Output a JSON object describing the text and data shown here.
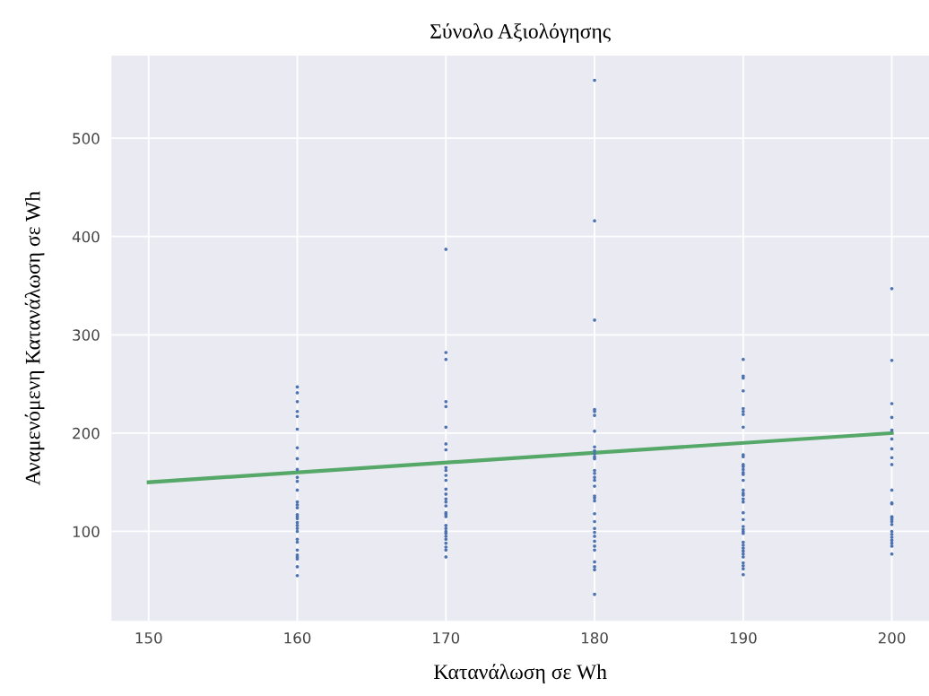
{
  "chart_data": {
    "type": "scatter",
    "title": "Σύνολο Αξιολόγησης",
    "xlabel": "Κατανάλωση σε Wh",
    "ylabel": "Αναμενόμενη Κατανάλωση σε Wh",
    "xlim": [
      147.5,
      202.5
    ],
    "xticks": [
      150,
      160,
      170,
      180,
      190,
      200
    ],
    "ylim": [
      9,
      584
    ],
    "yticks": [
      100,
      200,
      300,
      400,
      500
    ],
    "grid": true,
    "marker": "circle",
    "series": [
      {
        "color": "#4c72b0",
        "x": [
          160,
          160,
          160,
          160,
          160,
          160,
          160,
          160,
          160,
          160,
          160,
          160,
          160,
          160,
          160,
          160,
          160,
          160,
          160,
          160,
          160,
          160,
          160,
          160,
          160,
          160,
          160,
          160,
          160,
          160,
          170,
          170,
          170,
          170,
          170,
          170,
          170,
          170,
          170,
          170,
          170,
          170,
          170,
          170,
          170,
          170,
          170,
          170,
          170,
          170,
          170,
          170,
          170,
          170,
          170,
          170,
          170,
          170,
          170,
          170,
          180,
          180,
          180,
          180,
          180,
          180,
          180,
          180,
          180,
          180,
          180,
          180,
          180,
          180,
          180,
          180,
          180,
          180,
          180,
          180,
          180,
          180,
          180,
          180,
          180,
          180,
          180,
          180,
          180,
          180,
          180,
          180,
          190,
          190,
          190,
          190,
          190,
          190,
          190,
          190,
          190,
          190,
          190,
          190,
          190,
          190,
          190,
          190,
          190,
          190,
          190,
          190,
          190,
          190,
          190,
          190,
          190,
          190,
          190,
          190,
          190,
          190,
          190,
          190,
          190,
          190,
          190,
          190,
          190,
          200,
          200,
          200,
          200,
          200,
          200,
          200,
          200,
          200,
          200,
          200,
          200,
          200,
          200,
          200,
          200,
          200,
          200,
          200,
          200,
          200,
          200,
          200,
          200
        ],
        "values": [
          247,
          241,
          232,
          222,
          217,
          204,
          185,
          174,
          163,
          155,
          151,
          142,
          130,
          127,
          124,
          117,
          115,
          113,
          109,
          106,
          103,
          100,
          92,
          89,
          81,
          76,
          74,
          72,
          64,
          55,
          387,
          282,
          275,
          232,
          227,
          206,
          189,
          183,
          165,
          162,
          157,
          152,
          143,
          138,
          133,
          130,
          126,
          119,
          117,
          115,
          106,
          103,
          100,
          98,
          95,
          92,
          88,
          84,
          81,
          74,
          559,
          416,
          315,
          224,
          222,
          218,
          202,
          186,
          182,
          179,
          176,
          174,
          162,
          159,
          155,
          152,
          146,
          136,
          134,
          131,
          118,
          110,
          103,
          99,
          95,
          90,
          85,
          81,
          69,
          64,
          61,
          36,
          275,
          258,
          256,
          243,
          225,
          222,
          219,
          206,
          178,
          176,
          168,
          166,
          163,
          160,
          158,
          152,
          142,
          139,
          137,
          133,
          130,
          119,
          112,
          105,
          102,
          100,
          98,
          89,
          86,
          83,
          80,
          77,
          74,
          68,
          65,
          62,
          56,
          347,
          274,
          230,
          216,
          203,
          194,
          184,
          175,
          168,
          142,
          129,
          128,
          115,
          114,
          112,
          110,
          107,
          100,
          97,
          94,
          91,
          88,
          85,
          77
        ]
      },
      {
        "type": "line",
        "color": "#55a868",
        "marker": "none",
        "x": [
          150,
          200
        ],
        "values": [
          150,
          200
        ]
      }
    ]
  }
}
